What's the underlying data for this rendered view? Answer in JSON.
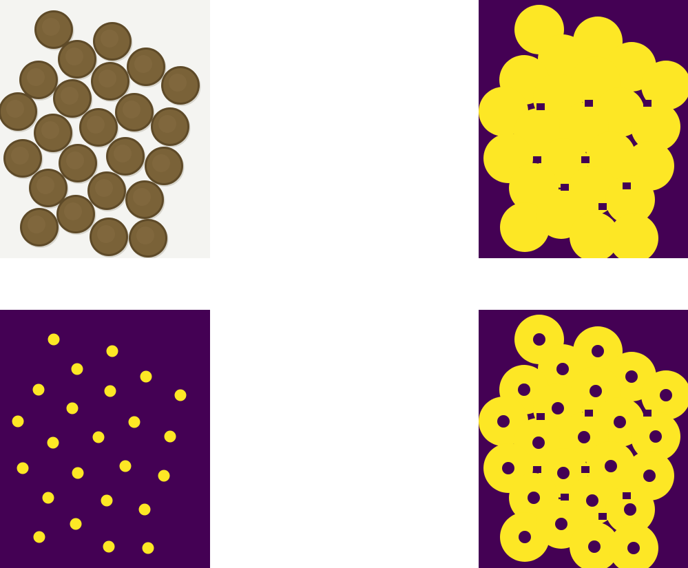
{
  "colors": {
    "photo_background": "#f4f4f1",
    "coin_fill": "#7a6238",
    "coin_rim": "#5e4a28",
    "coin_highlight": "#8c7447",
    "mask_background": "#440154",
    "mask_foreground": "#fde725"
  },
  "panels": [
    {
      "name": "coins-photo",
      "kind": "photo"
    },
    {
      "name": "sure-foreground-mask",
      "kind": "binary-mask"
    },
    {
      "name": "marker-seeds",
      "kind": "binary-mask"
    },
    {
      "name": "unknown-region-rings",
      "kind": "binary-mask"
    }
  ],
  "coin_count": 24
}
